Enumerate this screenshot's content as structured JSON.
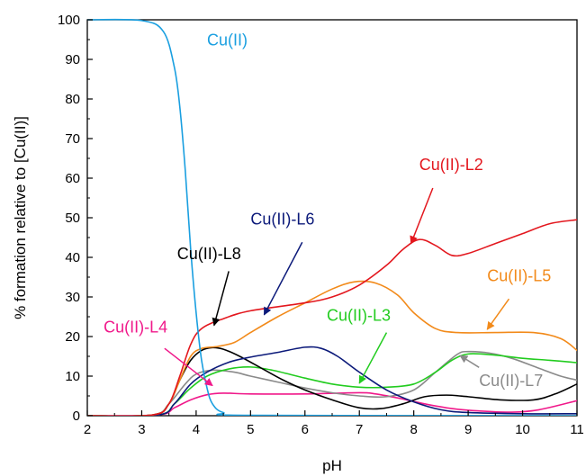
{
  "chart_data": {
    "type": "line",
    "title": "",
    "xlabel": "pH",
    "ylabel": "% formation relative to [Cu(II)]",
    "xlim": [
      2,
      11
    ],
    "ylim": [
      0,
      100
    ],
    "xticks": [
      2,
      3,
      4,
      5,
      6,
      7,
      8,
      9,
      10,
      11
    ],
    "yticks": [
      0,
      10,
      20,
      30,
      40,
      50,
      60,
      70,
      80,
      90,
      100
    ],
    "grid": false,
    "legend": "none",
    "series": [
      {
        "name": "Cu(II)",
        "color": "#1a9fe0",
        "points": [
          [
            2.0,
            100
          ],
          [
            3.0,
            99.8
          ],
          [
            3.4,
            97
          ],
          [
            3.6,
            88
          ],
          [
            3.7,
            78
          ],
          [
            3.8,
            62
          ],
          [
            3.9,
            42
          ],
          [
            4.0,
            26
          ],
          [
            4.1,
            14
          ],
          [
            4.2,
            7
          ],
          [
            4.3,
            3
          ],
          [
            4.5,
            0.8
          ],
          [
            5.0,
            0.1
          ],
          [
            11.0,
            0
          ]
        ]
      },
      {
        "name": "Cu(II)-L2",
        "color": "#e3171e",
        "points": [
          [
            2.0,
            0
          ],
          [
            3.2,
            0.2
          ],
          [
            3.5,
            3
          ],
          [
            3.7,
            10
          ],
          [
            3.9,
            18
          ],
          [
            4.1,
            22
          ],
          [
            4.5,
            24.5
          ],
          [
            5.0,
            26.5
          ],
          [
            6.0,
            28.5
          ],
          [
            6.5,
            30
          ],
          [
            7.0,
            33
          ],
          [
            7.5,
            38
          ],
          [
            7.8,
            42
          ],
          [
            8.1,
            44.5
          ],
          [
            8.4,
            43
          ],
          [
            8.7,
            40.5
          ],
          [
            9.0,
            41
          ],
          [
            9.5,
            43.5
          ],
          [
            10.0,
            46
          ],
          [
            10.5,
            48.5
          ],
          [
            11.0,
            49.5
          ]
        ]
      },
      {
        "name": "Cu(II)-L5",
        "color": "#f28a1a",
        "points": [
          [
            2.0,
            0
          ],
          [
            3.2,
            0.2
          ],
          [
            3.5,
            3
          ],
          [
            3.7,
            9
          ],
          [
            3.9,
            15
          ],
          [
            4.1,
            17
          ],
          [
            4.4,
            17.5
          ],
          [
            4.7,
            18.5
          ],
          [
            5.0,
            21
          ],
          [
            5.5,
            25
          ],
          [
            6.0,
            28.5
          ],
          [
            6.5,
            32
          ],
          [
            6.9,
            33.8
          ],
          [
            7.3,
            33.5
          ],
          [
            7.7,
            30.5
          ],
          [
            8.0,
            26
          ],
          [
            8.4,
            22
          ],
          [
            8.8,
            21
          ],
          [
            9.5,
            21
          ],
          [
            10.2,
            21
          ],
          [
            10.7,
            19.5
          ],
          [
            11.0,
            16.5
          ]
        ]
      },
      {
        "name": "Cu(II)-L6",
        "color": "#0c1a7a",
        "points": [
          [
            2.0,
            0
          ],
          [
            3.3,
            0.2
          ],
          [
            3.6,
            3
          ],
          [
            3.9,
            8
          ],
          [
            4.2,
            11
          ],
          [
            4.6,
            13.5
          ],
          [
            5.0,
            14.8
          ],
          [
            5.5,
            16
          ],
          [
            6.0,
            17.3
          ],
          [
            6.3,
            17
          ],
          [
            6.6,
            15
          ],
          [
            7.0,
            11
          ],
          [
            7.5,
            6.5
          ],
          [
            8.0,
            3.5
          ],
          [
            8.5,
            1.5
          ],
          [
            9.0,
            0.8
          ],
          [
            10.0,
            0.5
          ],
          [
            11.0,
            0.5
          ]
        ]
      },
      {
        "name": "Cu(II)-L8",
        "color": "#000000",
        "points": [
          [
            2.0,
            0
          ],
          [
            3.2,
            0.2
          ],
          [
            3.5,
            3
          ],
          [
            3.7,
            9
          ],
          [
            3.9,
            14
          ],
          [
            4.1,
            16.5
          ],
          [
            4.3,
            17.2
          ],
          [
            4.5,
            16.8
          ],
          [
            4.8,
            15
          ],
          [
            5.2,
            12
          ],
          [
            5.6,
            9
          ],
          [
            6.0,
            6.5
          ],
          [
            6.5,
            4
          ],
          [
            7.0,
            2
          ],
          [
            7.4,
            1.8
          ],
          [
            7.8,
            3
          ],
          [
            8.2,
            4.8
          ],
          [
            8.6,
            5.2
          ],
          [
            9.0,
            4.8
          ],
          [
            9.6,
            4
          ],
          [
            10.2,
            4
          ],
          [
            10.6,
            5.5
          ],
          [
            11.0,
            8
          ]
        ]
      },
      {
        "name": "Cu(II)-L3",
        "color": "#22cc1f",
        "points": [
          [
            2.0,
            0
          ],
          [
            3.3,
            0.2
          ],
          [
            3.6,
            3
          ],
          [
            3.9,
            7
          ],
          [
            4.2,
            10
          ],
          [
            4.6,
            11.8
          ],
          [
            5.0,
            12.3
          ],
          [
            5.4,
            11.5
          ],
          [
            6.0,
            9.5
          ],
          [
            6.5,
            8
          ],
          [
            7.0,
            7.2
          ],
          [
            7.5,
            7.2
          ],
          [
            8.0,
            8
          ],
          [
            8.4,
            11
          ],
          [
            8.7,
            14
          ],
          [
            9.0,
            15.6
          ],
          [
            9.5,
            15.3
          ],
          [
            10.0,
            14.5
          ],
          [
            10.5,
            14
          ],
          [
            11.0,
            13.4
          ]
        ]
      },
      {
        "name": "Cu(II)-L7",
        "color": "#8a8a8a",
        "points": [
          [
            2.0,
            0
          ],
          [
            3.2,
            0.2
          ],
          [
            3.5,
            3
          ],
          [
            3.8,
            8
          ],
          [
            4.0,
            10.5
          ],
          [
            4.3,
            11.5
          ],
          [
            4.7,
            11
          ],
          [
            5.0,
            10
          ],
          [
            5.5,
            8.5
          ],
          [
            6.0,
            7
          ],
          [
            6.5,
            5.8
          ],
          [
            7.0,
            5
          ],
          [
            7.5,
            4.8
          ],
          [
            8.0,
            6.5
          ],
          [
            8.4,
            11
          ],
          [
            8.8,
            15.5
          ],
          [
            9.0,
            16.2
          ],
          [
            9.4,
            15.8
          ],
          [
            9.8,
            14.5
          ],
          [
            10.3,
            12
          ],
          [
            10.7,
            10
          ],
          [
            11.0,
            9
          ]
        ]
      },
      {
        "name": "Cu(II)-L4",
        "color": "#f0188a",
        "points": [
          [
            2.0,
            0
          ],
          [
            3.3,
            0.2
          ],
          [
            3.6,
            2
          ],
          [
            3.9,
            4
          ],
          [
            4.2,
            5.3
          ],
          [
            4.5,
            5.7
          ],
          [
            5.0,
            5.5
          ],
          [
            6.0,
            5.5
          ],
          [
            7.0,
            5.8
          ],
          [
            7.3,
            5.5
          ],
          [
            7.7,
            4.5
          ],
          [
            8.2,
            3
          ],
          [
            8.7,
            1.8
          ],
          [
            9.2,
            1.2
          ],
          [
            9.8,
            0.9
          ],
          [
            10.3,
            1.5
          ],
          [
            11.0,
            3.8
          ]
        ]
      }
    ],
    "annotations": [
      {
        "text": "Cu(II)",
        "color": "#1a9fe0",
        "tx": 4.2,
        "ty": 93.5
      },
      {
        "text": "Cu(II)-L2",
        "color": "#e3171e",
        "tx": 8.1,
        "ty": 62,
        "arrow_from": [
          8.35,
          57.5
        ],
        "arrow_to": [
          7.95,
          43.5
        ]
      },
      {
        "text": "Cu(II)-L6",
        "color": "#0c1a7a",
        "tx": 5.0,
        "ty": 48.3,
        "arrow_from": [
          5.95,
          43.8
        ],
        "arrow_to": [
          5.25,
          25.5
        ]
      },
      {
        "text": "Cu(II)-L8",
        "color": "#000000",
        "tx": 3.65,
        "ty": 39.5,
        "arrow_from": [
          4.6,
          36.5
        ],
        "arrow_to": [
          4.33,
          22.8
        ]
      },
      {
        "text": "Cu(II)-L5",
        "color": "#f28a1a",
        "tx": 9.35,
        "ty": 34,
        "arrow_from": [
          9.75,
          29.5
        ],
        "arrow_to": [
          9.35,
          21.8
        ]
      },
      {
        "text": "Cu(II)-L3",
        "color": "#22cc1f",
        "tx": 6.4,
        "ty": 24,
        "arrow_from": [
          7.5,
          21
        ],
        "arrow_to": [
          7.0,
          8.2
        ]
      },
      {
        "text": "Cu(II)-L4",
        "color": "#f0188a",
        "tx": 2.3,
        "ty": 21,
        "arrow_from": [
          3.42,
          17
        ],
        "arrow_to": [
          4.3,
          7.6
        ]
      },
      {
        "text": "Cu(II)-L7",
        "color": "#8a8a8a",
        "tx": 9.2,
        "ty": 7.5,
        "arrow_from": [
          9.2,
          12.2
        ],
        "arrow_to": [
          8.85,
          15.2
        ]
      }
    ]
  }
}
